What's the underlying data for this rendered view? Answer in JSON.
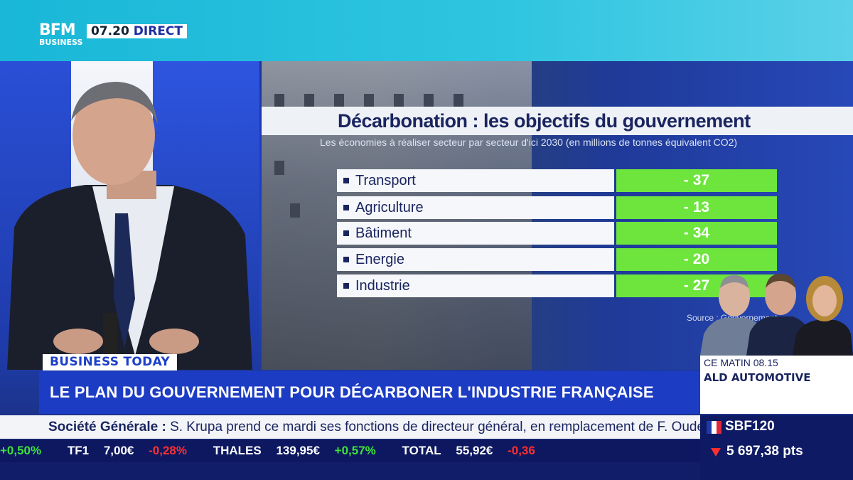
{
  "channel": {
    "logo_line1": "BFM",
    "logo_line2": "BUSINESS",
    "time": "07.20",
    "live_label": "DIRECT"
  },
  "graphic": {
    "title": "Décarbonation : les objectifs du gouvernement",
    "subtitle": "Les économies à réaliser secteur par secteur d'ici 2030 (en millions de tonnes équivalent CO2)",
    "rows": [
      {
        "label": "Transport",
        "value": "- 37"
      },
      {
        "label": "Agriculture",
        "value": "- 13"
      },
      {
        "label": "Bâtiment",
        "value": "- 34"
      },
      {
        "label": "Energie",
        "value": "- 20"
      },
      {
        "label": "Industrie",
        "value": "- 27"
      }
    ],
    "source": "Source : Gouvernement",
    "value_color": "#6ee53d"
  },
  "lower_third": {
    "program": "BUSINESS TODAY",
    "headline": "LE PLAN DU GOUVERNEMENT POUR DÉCARBONER L'INDUSTRIE FRANÇAISE",
    "next_line1": "CE MATIN 08.15",
    "next_line2": "ALD AUTOMOTIVE"
  },
  "news": {
    "company": "Société Générale :",
    "text": "S. Krupa prend ce mardi ses fonctions de directeur général, en remplacement de F. Oudéa."
  },
  "ticker": [
    {
      "name": "",
      "price": "",
      "change": "+0,50%",
      "dir": "up"
    },
    {
      "name": "TF1",
      "price": "7,00€",
      "change": "-0,28%",
      "dir": "down"
    },
    {
      "name": "THALES",
      "price": "139,95€",
      "change": "+0,57%",
      "dir": "up"
    },
    {
      "name": "TOTAL",
      "price": "55,92€",
      "change": "-0,36",
      "dir": "down"
    }
  ],
  "index": {
    "name": "SBF120",
    "value": "5 697,38 pts"
  }
}
